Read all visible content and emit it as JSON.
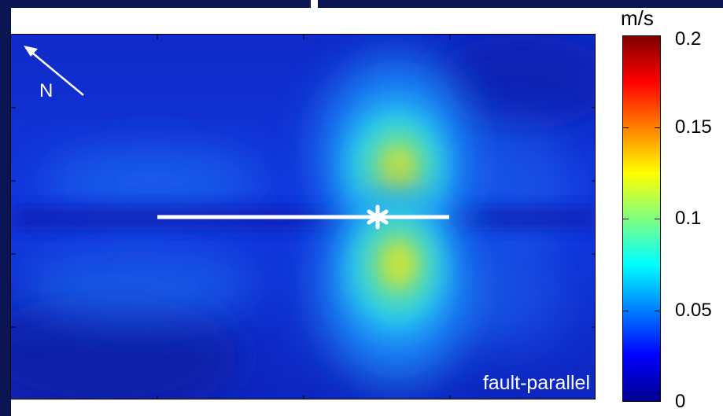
{
  "chart_data": {
    "type": "heatmap",
    "panel_label": "fault-parallel",
    "north_label": "N",
    "colorbar": {
      "unit": "m/s",
      "range": [
        0,
        0.2
      ],
      "ticks": [
        "0.2",
        "0.15",
        "0.1",
        "0.05",
        "0"
      ],
      "colormap": "jet"
    },
    "fault_line": "white horizontal segment with asterisk epicenter near the right end",
    "peak_value_approx": 0.13
  },
  "colors": {
    "frame": "#0b1553",
    "background_field": "#1030d8",
    "fault": "#ffffff"
  }
}
